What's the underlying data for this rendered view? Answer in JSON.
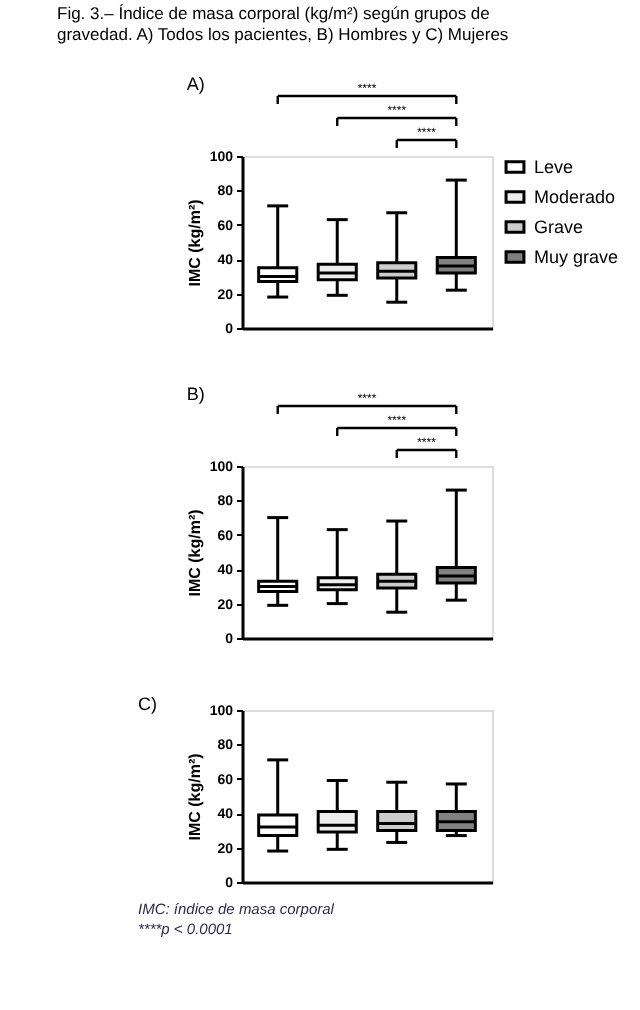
{
  "chart_data": [
    {
      "type": "box",
      "title": "Fig. 3.– Índice de masa corporal (kg/m²) según grupos de gravedad. A) Todos los pacientes, B) Hombres y C) Mujeres",
      "subtitle": "A)",
      "ylabel": "IMC (kg/m²)",
      "categories": [
        null,
        null,
        null,
        null
      ],
      "ylim": [
        0,
        100
      ],
      "yticks": [
        0,
        20,
        40,
        60,
        80,
        100
      ],
      "tick_labels": "y",
      "grid": false,
      "legend": "right",
      "series": [
        {
          "name": "Leve",
          "color": "#ffffff",
          "boxes": [
            {
              "low": 18,
              "q1": 27,
              "median": 30,
              "q3": 35,
              "high": 71
            },
            null,
            null,
            null
          ]
        },
        {
          "name": "Moderado",
          "color": "#eeeeee",
          "boxes": [
            null,
            {
              "low": 19,
              "q1": 28,
              "median": 32,
              "q3": 37,
              "high": 63
            },
            null,
            null
          ]
        },
        {
          "name": "Grave",
          "color": "#cccccc",
          "boxes": [
            null,
            null,
            {
              "low": 15,
              "q1": 29,
              "median": 33,
              "q3": 38,
              "high": 67
            },
            null
          ]
        },
        {
          "name": "Muy grave",
          "color": "#808080",
          "boxes": [
            null,
            null,
            null,
            {
              "low": 22,
              "q1": 32,
              "median": 36,
              "q3": 41,
              "high": 86
            }
          ]
        }
      ],
      "annotations": [
        "****",
        "****",
        "****"
      ]
    },
    {
      "type": "box",
      "title": "B)",
      "ylabel": "IMC (kg/m²)",
      "categories": [
        null,
        null,
        null,
        null
      ],
      "ylim": [
        0,
        100
      ],
      "yticks": [
        0,
        20,
        40,
        60,
        80,
        100
      ],
      "tick_labels": "y",
      "grid": false,
      "series": [
        {
          "color": "#ffffff",
          "boxes": [
            {
              "low": 19,
              "q1": 27,
              "median": 30,
              "q3": 33,
              "high": 70
            },
            null,
            null,
            null
          ]
        },
        {
          "color": "#eeeeee",
          "boxes": [
            null,
            {
              "low": 20,
              "q1": 28,
              "median": 31,
              "q3": 35,
              "high": 63
            },
            null,
            null
          ]
        },
        {
          "color": "#cccccc",
          "boxes": [
            null,
            null,
            {
              "low": 15,
              "q1": 29,
              "median": 33,
              "q3": 37,
              "high": 68
            },
            null
          ]
        },
        {
          "color": "#808080",
          "boxes": [
            null,
            null,
            null,
            {
              "low": 22,
              "q1": 32,
              "median": 36,
              "q3": 41,
              "high": 86
            }
          ]
        }
      ],
      "annotations": [
        "****",
        "****",
        "****"
      ]
    },
    {
      "type": "box",
      "title": "C)",
      "ylabel": "IMC (kg/m²)",
      "categories": [
        null,
        null,
        null,
        null
      ],
      "ylim": [
        0,
        100
      ],
      "yticks": [
        0,
        20,
        40,
        60,
        80,
        100
      ],
      "tick_labels": "y",
      "grid": false,
      "series": [
        {
          "color": "#ffffff",
          "boxes": [
            {
              "low": 18,
              "q1": 27,
              "median": 32,
              "q3": 39,
              "high": 71
            },
            null,
            null,
            null
          ]
        },
        {
          "color": "#eeeeee",
          "boxes": [
            null,
            {
              "low": 19,
              "q1": 29,
              "median": 33,
              "q3": 41,
              "high": 59
            },
            null,
            null
          ]
        },
        {
          "color": "#cccccc",
          "boxes": [
            null,
            null,
            {
              "low": 23,
              "q1": 30,
              "median": 34,
              "q3": 41,
              "high": 58
            },
            null
          ]
        },
        {
          "color": "#808080",
          "boxes": [
            null,
            null,
            null,
            {
              "low": 27,
              "q1": 30,
              "median": 35,
              "q3": 41,
              "high": 57
            }
          ]
        }
      ],
      "annotations": [
        "IMC: índice de masa corporal",
        "****p < 0.0001"
      ]
    }
  ]
}
